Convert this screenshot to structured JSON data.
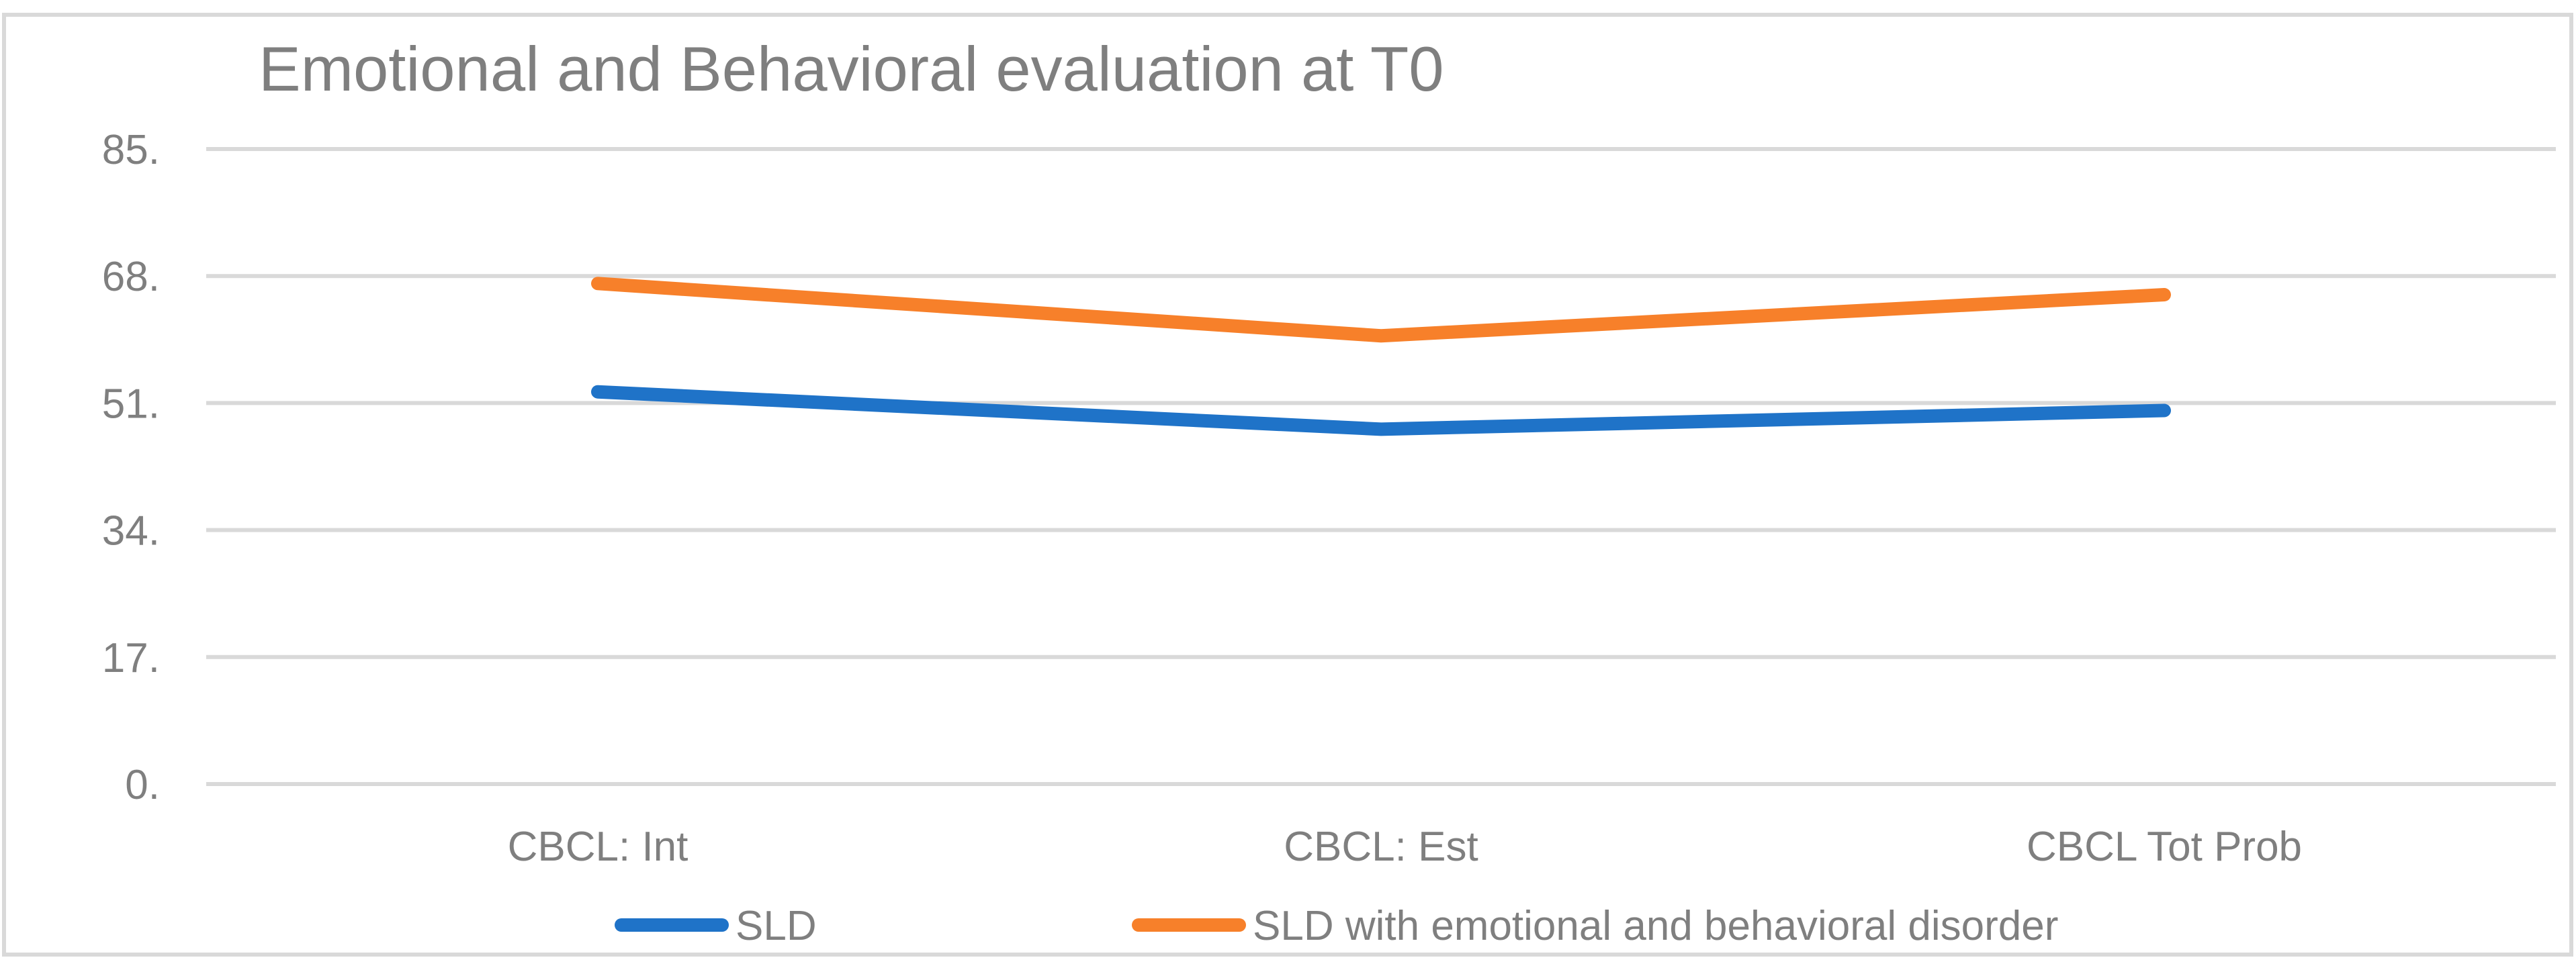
{
  "chart_data": {
    "type": "line",
    "title": "Emotional and Behavioral evaluation at T0",
    "xlabel": "",
    "ylabel": "",
    "categories": [
      "CBCL: Int",
      "CBCL: Est",
      "CBCL Tot Prob"
    ],
    "ylim": [
      0,
      85
    ],
    "yticks": [
      0,
      17,
      34,
      51,
      68,
      85
    ],
    "ytick_labels": [
      "0.",
      "17.",
      "34.",
      "51.",
      "68.",
      "85."
    ],
    "grid": true,
    "legend_position": "bottom",
    "series": [
      {
        "name": "SLD",
        "color": "#1f73c8",
        "values": [
          52.5,
          47.5,
          50.0
        ]
      },
      {
        "name": "SLD with emotional and behavioral disorder",
        "color": "#f7802a",
        "values": [
          67.0,
          60.0,
          65.5
        ]
      }
    ]
  },
  "colors": {
    "title": "#7f7f7f",
    "axis_text": "#7f7f7f",
    "grid": "#d9d9d9",
    "border": "#d9d9d9"
  }
}
